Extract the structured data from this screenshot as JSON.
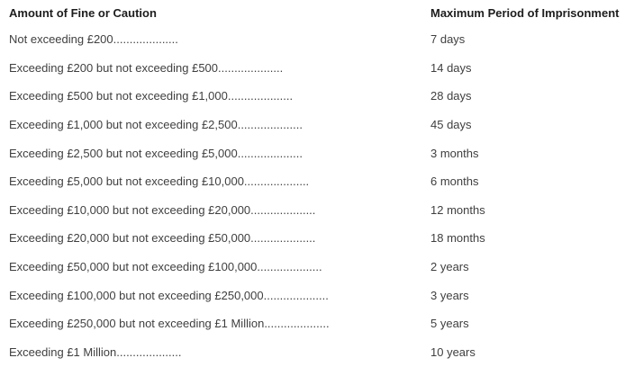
{
  "table": {
    "headers": {
      "fine": "Amount of Fine or Caution",
      "period": "Maximum Period of Imprisonment"
    },
    "rows": [
      {
        "fine": "Not exceeding £200....................",
        "period": "7 days"
      },
      {
        "fine": "Exceeding £200 but not exceeding £500....................",
        "period": "14 days"
      },
      {
        "fine": "Exceeding £500 but not exceeding £1,000....................",
        "period": "28 days"
      },
      {
        "fine": "Exceeding £1,000 but not exceeding £2,500....................",
        "period": "45 days"
      },
      {
        "fine": "Exceeding £2,500 but not exceeding £5,000....................",
        "period": "3 months"
      },
      {
        "fine": "Exceeding £5,000 but not exceeding £10,000....................",
        "period": "6 months"
      },
      {
        "fine": "Exceeding £10,000 but not exceeding £20,000....................",
        "period": "12 months"
      },
      {
        "fine": "Exceeding £20,000 but not exceeding £50,000....................",
        "period": "18 months"
      },
      {
        "fine": "Exceeding £50,000 but not exceeding £100,000....................",
        "period": "2 years"
      },
      {
        "fine": "Exceeding £100,000 but not exceeding £250,000....................",
        "period": "3 years"
      },
      {
        "fine": "Exceeding £250,000 but not exceeding £1 Million....................",
        "period": "5 years"
      },
      {
        "fine": "Exceeding £1 Million....................",
        "period": "10 years"
      }
    ]
  },
  "colors": {
    "background": "#ffffff",
    "header_text": "#1d1d1d",
    "body_text": "#3f3f3f"
  }
}
